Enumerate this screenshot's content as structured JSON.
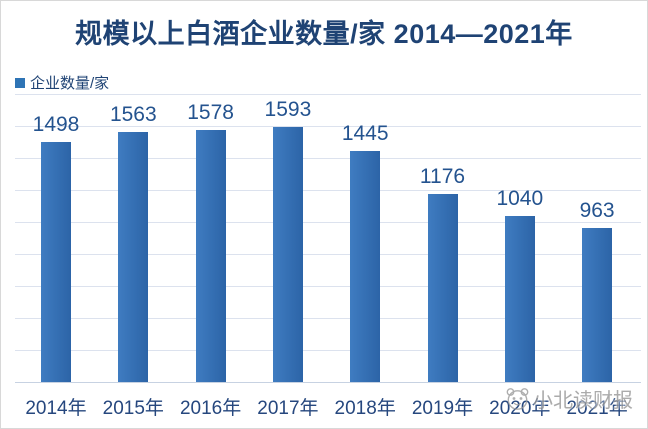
{
  "title": {
    "text": "规模以上白酒企业数量/家 2014—2021年",
    "color": "#1F4374"
  },
  "legend": {
    "label": "企业数量/家",
    "marker_color": "#2E74B5"
  },
  "chart_data": {
    "type": "bar",
    "title": "规模以上白酒企业数量/家 2014—2021年",
    "series_name": "企业数量/家",
    "categories": [
      "2014年",
      "2015年",
      "2016年",
      "2017年",
      "2018年",
      "2019年",
      "2020年",
      "2021年"
    ],
    "values": [
      1498,
      1563,
      1578,
      1593,
      1445,
      1176,
      1040,
      963
    ],
    "ylim": [
      0,
      1800
    ],
    "grid_step": 200,
    "grid": true,
    "legend_position": "top-left",
    "data_labels": true,
    "colors": {
      "bar_left": "#3F7CC1",
      "bar_right": "#2C64A7",
      "value_label": "#24538F",
      "xtick_label": "#26477E",
      "gridline": "#DCE2EE",
      "axis_line": "#C7D2E2"
    }
  },
  "watermark": {
    "text": "小北读财报",
    "icon": "panda-face-icon",
    "color": "#979797"
  }
}
